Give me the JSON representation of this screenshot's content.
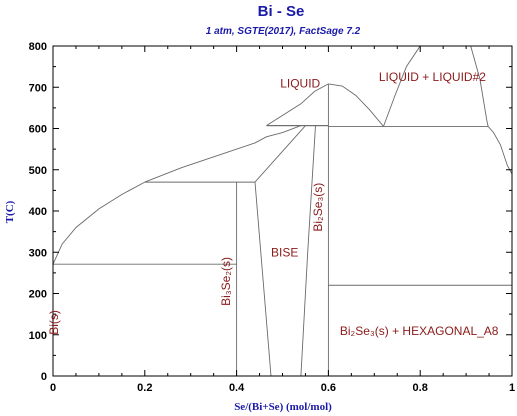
{
  "chart_data": {
    "type": "phase-diagram",
    "title": "Bi - Se",
    "subtitle": "1 atm, SGTE(2017), FactSage 7.2",
    "xlabel": "Se/(Bi+Se) (mol/mol)",
    "ylabel": "T(C)",
    "xlim": [
      0,
      1
    ],
    "ylim": [
      0,
      800
    ],
    "xticks": [
      0,
      0.2,
      0.4,
      0.6,
      0.8,
      1
    ],
    "xtick_labels": [
      "0",
      "0.2",
      "0.4",
      "0.6",
      "0.8",
      "1"
    ],
    "yticks": [
      0,
      100,
      200,
      300,
      400,
      500,
      600,
      700,
      800
    ],
    "ytick_labels": [
      "0",
      "100",
      "200",
      "300",
      "400",
      "500",
      "600",
      "700",
      "800"
    ],
    "grid": false,
    "colors": {
      "title": "#1a1aa8",
      "labels": "#8b1a1a",
      "lines": "#6a6a6a"
    },
    "invariant_lines": [
      {
        "name": "Bi-eutectic",
        "x": [
          0.0,
          0.4
        ],
        "y": [
          271,
          271
        ]
      },
      {
        "name": "Bi3Se2-peritectic",
        "x": [
          0.2,
          0.44
        ],
        "y": [
          470,
          470
        ]
      },
      {
        "name": "BiSe-peritectic",
        "x": [
          0.465,
          0.6
        ],
        "y": [
          607,
          607
        ]
      },
      {
        "name": "Bi2Se3-monotectic-left",
        "x": [
          0.465,
          0.6
        ],
        "y": [
          607,
          607
        ]
      },
      {
        "name": "monotectic",
        "x": [
          0.6,
          0.948
        ],
        "y": [
          605,
          605
        ]
      },
      {
        "name": "Bi2Se3-eutectic-Se",
        "x": [
          0.6,
          1.0
        ],
        "y": [
          220,
          220
        ]
      }
    ],
    "phase_boundaries": [
      {
        "name": "liquidus-Bi-rich",
        "points": [
          [
            0.0,
            271
          ],
          [
            0.02,
            320
          ],
          [
            0.05,
            360
          ],
          [
            0.1,
            405
          ],
          [
            0.15,
            440
          ],
          [
            0.2,
            470
          ]
        ]
      },
      {
        "name": "liquidus-mid",
        "points": [
          [
            0.2,
            470
          ],
          [
            0.28,
            505
          ],
          [
            0.36,
            535
          ],
          [
            0.44,
            565
          ],
          [
            0.465,
            580
          ],
          [
            0.5,
            590
          ],
          [
            0.54,
            607
          ]
        ]
      },
      {
        "name": "liquidus-Bi2Se3-left",
        "points": [
          [
            0.465,
            607
          ],
          [
            0.54,
            660
          ],
          [
            0.57,
            690
          ],
          [
            0.6,
            708
          ]
        ]
      },
      {
        "name": "liquidus-Bi2Se3-right",
        "points": [
          [
            0.6,
            708
          ],
          [
            0.63,
            703
          ],
          [
            0.66,
            680
          ],
          [
            0.69,
            645
          ],
          [
            0.72,
            605
          ]
        ]
      },
      {
        "name": "miscibility-gap",
        "points": [
          [
            0.72,
            605
          ],
          [
            0.745,
            680
          ],
          [
            0.77,
            750
          ],
          [
            0.8,
            800
          ],
          [
            0.83,
            830
          ],
          [
            0.88,
            830
          ],
          [
            0.91,
            800
          ],
          [
            0.93,
            720
          ],
          [
            0.945,
            620
          ],
          [
            0.948,
            605
          ]
        ]
      },
      {
        "name": "liquidus-Se-rich",
        "points": [
          [
            0.948,
            605
          ],
          [
            0.96,
            590
          ],
          [
            0.975,
            560
          ],
          [
            0.99,
            510
          ],
          [
            1.0,
            490
          ]
        ]
      },
      {
        "name": "Bi3Se2-line",
        "points": [
          [
            0.4,
            0
          ],
          [
            0.4,
            470
          ]
        ]
      },
      {
        "name": "BiSe-left",
        "points": [
          [
            0.44,
            470
          ],
          [
            0.475,
            0
          ]
        ]
      },
      {
        "name": "BiSe-right",
        "points": [
          [
            0.54,
            0
          ],
          [
            0.555,
            300
          ],
          [
            0.572,
            607
          ]
        ]
      },
      {
        "name": "BiSe-top-link",
        "points": [
          [
            0.44,
            470
          ],
          [
            0.55,
            607
          ]
        ]
      },
      {
        "name": "Bi2Se3-line",
        "points": [
          [
            0.6,
            0
          ],
          [
            0.6,
            708
          ]
        ]
      }
    ],
    "phase_labels": [
      {
        "text": "LIQUID",
        "x": 0.495,
        "y": 700,
        "rotate": 0
      },
      {
        "text": "LIQUID + LIQUID#2",
        "x": 0.71,
        "y": 715,
        "rotate": 0
      },
      {
        "text": "BISE",
        "x": 0.475,
        "y": 290,
        "rotate": 0
      },
      {
        "text": "Bi₂Se₃(s) + HEXAGONAL_A8",
        "x": 0.625,
        "y": 100,
        "rotate": 0
      },
      {
        "text": "Bi(s)",
        "x": 0.0,
        "y": 100,
        "rotate": -90
      },
      {
        "text": "Bi₃Se₂(s)",
        "x": 0.375,
        "y": 170,
        "rotate": -90
      },
      {
        "text": "Bi₂Se₃(s)",
        "x": 0.575,
        "y": 350,
        "rotate": -90
      }
    ]
  }
}
